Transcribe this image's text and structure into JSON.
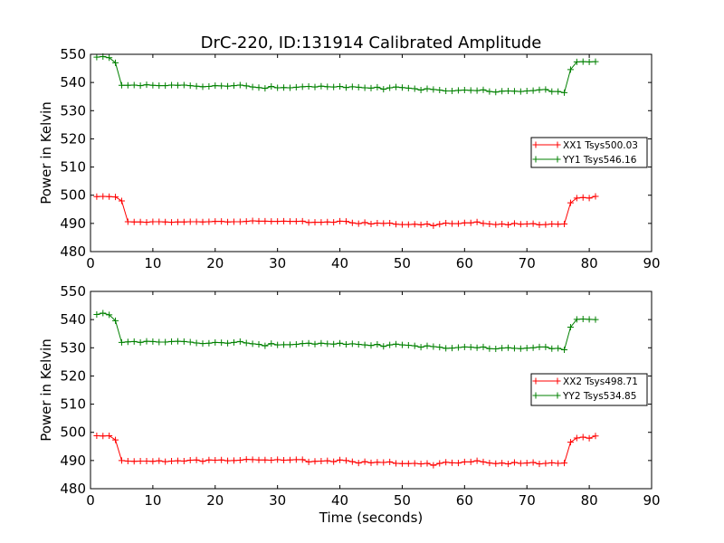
{
  "title": "DrC-220, ID:131914 Calibrated Amplitude",
  "chart_data": [
    {
      "type": "line",
      "ylabel": "Power in Kelvin",
      "xlabel": "",
      "xlim": [
        0,
        90
      ],
      "ylim": [
        480,
        550
      ],
      "xticks": [
        "0",
        "10",
        "20",
        "30",
        "40",
        "50",
        "60",
        "70",
        "80",
        "90"
      ],
      "yticks": [
        "480",
        "490",
        "500",
        "510",
        "520",
        "530",
        "540",
        "550"
      ],
      "grid": false,
      "legend_position": "right",
      "series": [
        {
          "name": "XX1 Tsys500.03",
          "color": "#ff0000",
          "x": [
            1,
            2,
            3,
            4,
            5,
            6,
            7,
            8,
            9,
            10,
            11,
            12,
            13,
            14,
            15,
            16,
            17,
            18,
            19,
            20,
            21,
            22,
            23,
            24,
            25,
            26,
            27,
            28,
            29,
            30,
            31,
            32,
            33,
            34,
            35,
            36,
            37,
            38,
            39,
            40,
            41,
            42,
            43,
            44,
            45,
            46,
            47,
            48,
            49,
            50,
            51,
            52,
            53,
            54,
            55,
            56,
            57,
            58,
            59,
            60,
            61,
            62,
            63,
            64,
            65,
            66,
            67,
            68,
            69,
            70,
            71,
            72,
            73,
            74,
            75,
            76,
            77,
            78,
            79,
            80,
            81
          ],
          "y": [
            499.5,
            499.6,
            499.5,
            499.4,
            498.0,
            490.6,
            490.5,
            490.5,
            490.4,
            490.6,
            490.6,
            490.5,
            490.4,
            490.5,
            490.5,
            490.6,
            490.6,
            490.5,
            490.6,
            490.7,
            490.7,
            490.5,
            490.6,
            490.6,
            490.7,
            490.9,
            490.8,
            490.8,
            490.7,
            490.7,
            490.8,
            490.7,
            490.7,
            490.8,
            490.3,
            490.4,
            490.4,
            490.5,
            490.4,
            490.8,
            490.7,
            490.2,
            489.9,
            490.3,
            489.8,
            490.1,
            490.0,
            490.1,
            489.7,
            489.6,
            489.6,
            489.7,
            489.5,
            489.8,
            489.2,
            489.7,
            490.1,
            489.9,
            489.9,
            490.2,
            490.2,
            490.5,
            490.0,
            489.8,
            489.6,
            489.8,
            489.5,
            490.0,
            489.7,
            489.8,
            489.9,
            489.5,
            489.6,
            489.8,
            489.7,
            489.8,
            497.3,
            499.0,
            499.2,
            499.0,
            499.6
          ]
        },
        {
          "name": "YY1 Tsys546.16",
          "color": "#008000",
          "x": [
            1,
            2,
            3,
            4,
            5,
            6,
            7,
            8,
            9,
            10,
            11,
            12,
            13,
            14,
            15,
            16,
            17,
            18,
            19,
            20,
            21,
            22,
            23,
            24,
            25,
            26,
            27,
            28,
            29,
            30,
            31,
            32,
            33,
            34,
            35,
            36,
            37,
            38,
            39,
            40,
            41,
            42,
            43,
            44,
            45,
            46,
            47,
            48,
            49,
            50,
            51,
            52,
            53,
            54,
            55,
            56,
            57,
            58,
            59,
            60,
            61,
            62,
            63,
            64,
            65,
            66,
            67,
            68,
            69,
            70,
            71,
            72,
            73,
            74,
            75,
            76,
            77,
            78,
            79,
            80,
            81
          ],
          "y": [
            549.0,
            549.2,
            548.8,
            547.0,
            539.0,
            539.0,
            539.1,
            538.9,
            539.2,
            539.0,
            538.9,
            538.9,
            539.1,
            539.0,
            539.1,
            538.9,
            538.7,
            538.5,
            538.6,
            538.9,
            538.8,
            538.7,
            538.9,
            539.1,
            538.8,
            538.4,
            538.2,
            537.9,
            538.6,
            538.1,
            538.2,
            538.1,
            538.3,
            538.5,
            538.6,
            538.4,
            538.7,
            538.5,
            538.4,
            538.6,
            538.2,
            538.5,
            538.3,
            538.1,
            538.0,
            538.3,
            537.6,
            538.1,
            538.4,
            538.2,
            538.0,
            537.8,
            537.3,
            537.8,
            537.5,
            537.3,
            537.0,
            537.0,
            537.2,
            537.3,
            537.2,
            537.1,
            537.4,
            536.8,
            536.6,
            536.9,
            537.0,
            536.9,
            536.8,
            537.0,
            537.1,
            537.4,
            537.5,
            536.8,
            536.8,
            536.4,
            544.6,
            547.3,
            547.4,
            547.3,
            547.4
          ]
        }
      ]
    },
    {
      "type": "line",
      "ylabel": "Power in Kelvin",
      "xlabel": "Time (seconds)",
      "xlim": [
        0,
        90
      ],
      "ylim": [
        480,
        550
      ],
      "xticks": [
        "0",
        "10",
        "20",
        "30",
        "40",
        "50",
        "60",
        "70",
        "80",
        "90"
      ],
      "yticks": [
        "480",
        "490",
        "500",
        "510",
        "520",
        "530",
        "540",
        "550"
      ],
      "grid": false,
      "legend_position": "right",
      "series": [
        {
          "name": "XX2 Tsys498.71",
          "color": "#ff0000",
          "x": [
            1,
            2,
            3,
            4,
            5,
            6,
            7,
            8,
            9,
            10,
            11,
            12,
            13,
            14,
            15,
            16,
            17,
            18,
            19,
            20,
            21,
            22,
            23,
            24,
            25,
            26,
            27,
            28,
            29,
            30,
            31,
            32,
            33,
            34,
            35,
            36,
            37,
            38,
            39,
            40,
            41,
            42,
            43,
            44,
            45,
            46,
            47,
            48,
            49,
            50,
            51,
            52,
            53,
            54,
            55,
            56,
            57,
            58,
            59,
            60,
            61,
            62,
            63,
            64,
            65,
            66,
            67,
            68,
            69,
            70,
            71,
            72,
            73,
            74,
            75,
            76,
            77,
            78,
            79,
            80,
            81
          ],
          "y": [
            498.8,
            498.7,
            498.8,
            497.3,
            490.0,
            489.8,
            489.7,
            489.8,
            489.8,
            489.7,
            489.9,
            489.6,
            489.8,
            489.9,
            489.8,
            490.1,
            490.2,
            489.7,
            490.2,
            490.1,
            490.2,
            489.9,
            490.0,
            490.1,
            490.4,
            490.3,
            490.2,
            490.2,
            490.1,
            490.3,
            490.1,
            490.2,
            490.3,
            490.3,
            489.5,
            489.7,
            489.8,
            489.9,
            489.6,
            490.2,
            490.0,
            489.6,
            489.1,
            489.6,
            489.2,
            489.4,
            489.3,
            489.5,
            489.0,
            488.9,
            488.9,
            489.0,
            488.8,
            489.0,
            488.3,
            489.0,
            489.4,
            489.2,
            489.1,
            489.5,
            489.5,
            489.9,
            489.5,
            489.1,
            488.9,
            489.1,
            488.8,
            489.3,
            489.0,
            489.1,
            489.3,
            488.8,
            489.0,
            489.2,
            489.0,
            489.1,
            496.5,
            498.0,
            498.3,
            497.9,
            498.7
          ]
        },
        {
          "name": "YY2 Tsys534.85",
          "color": "#008000",
          "x": [
            1,
            2,
            3,
            4,
            5,
            6,
            7,
            8,
            9,
            10,
            11,
            12,
            13,
            14,
            15,
            16,
            17,
            18,
            19,
            20,
            21,
            22,
            23,
            24,
            25,
            26,
            27,
            28,
            29,
            30,
            31,
            32,
            33,
            34,
            35,
            36,
            37,
            38,
            39,
            40,
            41,
            42,
            43,
            44,
            45,
            46,
            47,
            48,
            49,
            50,
            51,
            52,
            53,
            54,
            55,
            56,
            57,
            58,
            59,
            60,
            61,
            62,
            63,
            64,
            65,
            66,
            67,
            68,
            69,
            70,
            71,
            72,
            73,
            74,
            75,
            76,
            77,
            78,
            79,
            80,
            81
          ],
          "y": [
            541.8,
            542.3,
            541.7,
            539.6,
            531.9,
            532.1,
            532.2,
            531.9,
            532.3,
            532.2,
            532.0,
            532.0,
            532.2,
            532.3,
            532.2,
            532.0,
            531.7,
            531.5,
            531.6,
            531.9,
            531.8,
            531.6,
            531.9,
            532.2,
            531.7,
            531.4,
            531.2,
            530.7,
            531.5,
            531.0,
            531.1,
            531.1,
            531.2,
            531.5,
            531.6,
            531.3,
            531.6,
            531.4,
            531.3,
            531.6,
            531.2,
            531.4,
            531.2,
            531.0,
            530.8,
            531.2,
            530.5,
            531.0,
            531.3,
            531.0,
            530.9,
            530.7,
            530.2,
            530.7,
            530.4,
            530.2,
            529.8,
            529.9,
            530.1,
            530.3,
            530.2,
            530.0,
            530.3,
            529.7,
            529.6,
            529.9,
            530.0,
            529.8,
            529.7,
            529.9,
            530.0,
            530.3,
            530.3,
            529.7,
            529.8,
            529.3,
            537.3,
            540.1,
            540.2,
            540.1,
            540.0
          ]
        }
      ]
    }
  ]
}
